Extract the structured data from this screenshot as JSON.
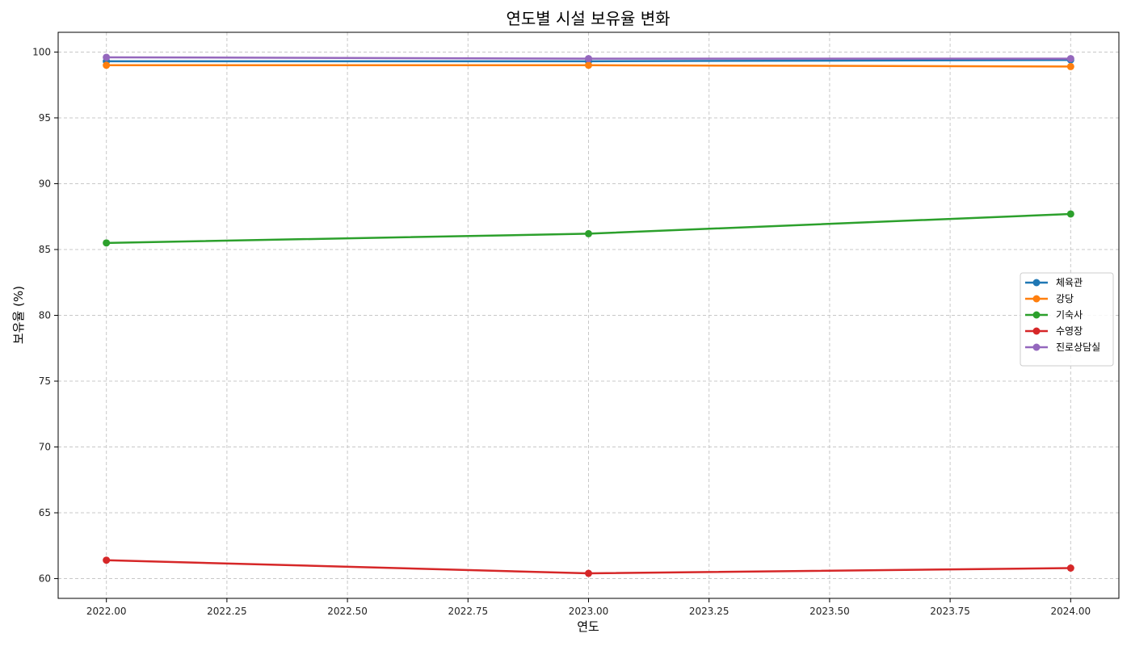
{
  "chart_data": {
    "type": "line",
    "title": "연도별 시설 보유율 변화",
    "xlabel": "연도",
    "ylabel": "보유율 (%)",
    "xlim": [
      2021.9,
      2024.1
    ],
    "ylim": [
      58.5,
      101.5
    ],
    "xticks": [
      2022.0,
      2022.25,
      2022.5,
      2022.75,
      2023.0,
      2023.25,
      2023.5,
      2023.75,
      2024.0
    ],
    "xtick_labels": [
      "2022.00",
      "2022.25",
      "2022.50",
      "2022.75",
      "2023.00",
      "2023.25",
      "2023.50",
      "2023.75",
      "2024.00"
    ],
    "yticks": [
      60,
      65,
      70,
      75,
      80,
      85,
      90,
      95,
      100
    ],
    "ytick_labels": [
      "60",
      "65",
      "70",
      "75",
      "80",
      "85",
      "90",
      "95",
      "100"
    ],
    "grid": true,
    "legend_position": "right",
    "x": [
      2022,
      2023,
      2024
    ],
    "series": [
      {
        "name": "체육관",
        "color": "#1f77b4",
        "values": [
          99.3,
          99.3,
          99.4
        ]
      },
      {
        "name": "강당",
        "color": "#ff7f0e",
        "values": [
          99.0,
          99.0,
          98.9
        ]
      },
      {
        "name": "기숙사",
        "color": "#2ca02c",
        "values": [
          85.5,
          86.2,
          87.7
        ]
      },
      {
        "name": "수영장",
        "color": "#d62728",
        "values": [
          61.4,
          60.4,
          60.8
        ]
      },
      {
        "name": "진로상담실",
        "color": "#9467bd",
        "values": [
          99.6,
          99.5,
          99.5
        ]
      }
    ]
  }
}
